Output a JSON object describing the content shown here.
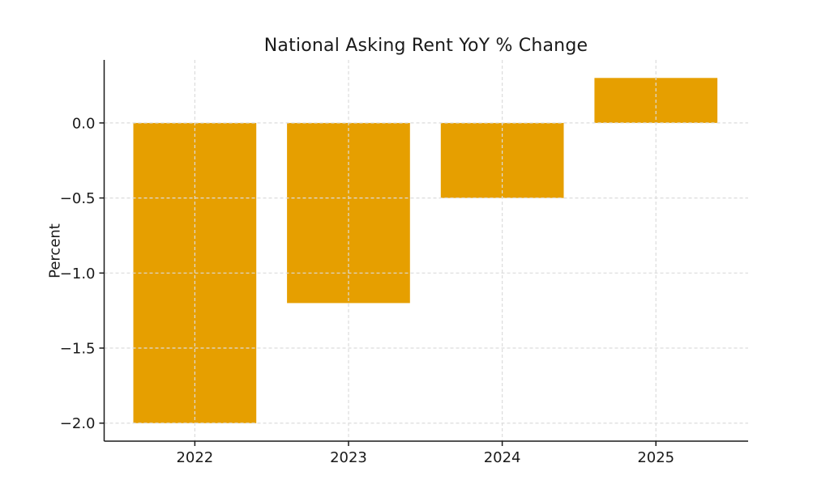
{
  "chart_data": {
    "type": "bar",
    "title": "National Asking Rent YoY % Change",
    "ylabel": "Percent",
    "xlabel": "",
    "categories": [
      "2022",
      "2023",
      "2024",
      "2025"
    ],
    "values": [
      -2.0,
      -1.2,
      -0.5,
      0.3
    ],
    "yticks": [
      0.0,
      -0.5,
      -1.0,
      -1.5,
      -2.0
    ],
    "ytick_labels": [
      "0.0",
      "−0.5",
      "−1.0",
      "−1.5",
      "−2.0"
    ],
    "ylim": [
      -2.12,
      0.42
    ],
    "xlim": [
      -0.59,
      3.6
    ],
    "bar_width": 0.8,
    "bar_color": "#E69F00",
    "grid": true,
    "grid_style": "dashed",
    "grid_color": "#DCDCDC",
    "axis_color": "#1A1A1A",
    "text_color": "#1A1A1A",
    "background": "#FFFFFF",
    "legend_position": "none"
  }
}
